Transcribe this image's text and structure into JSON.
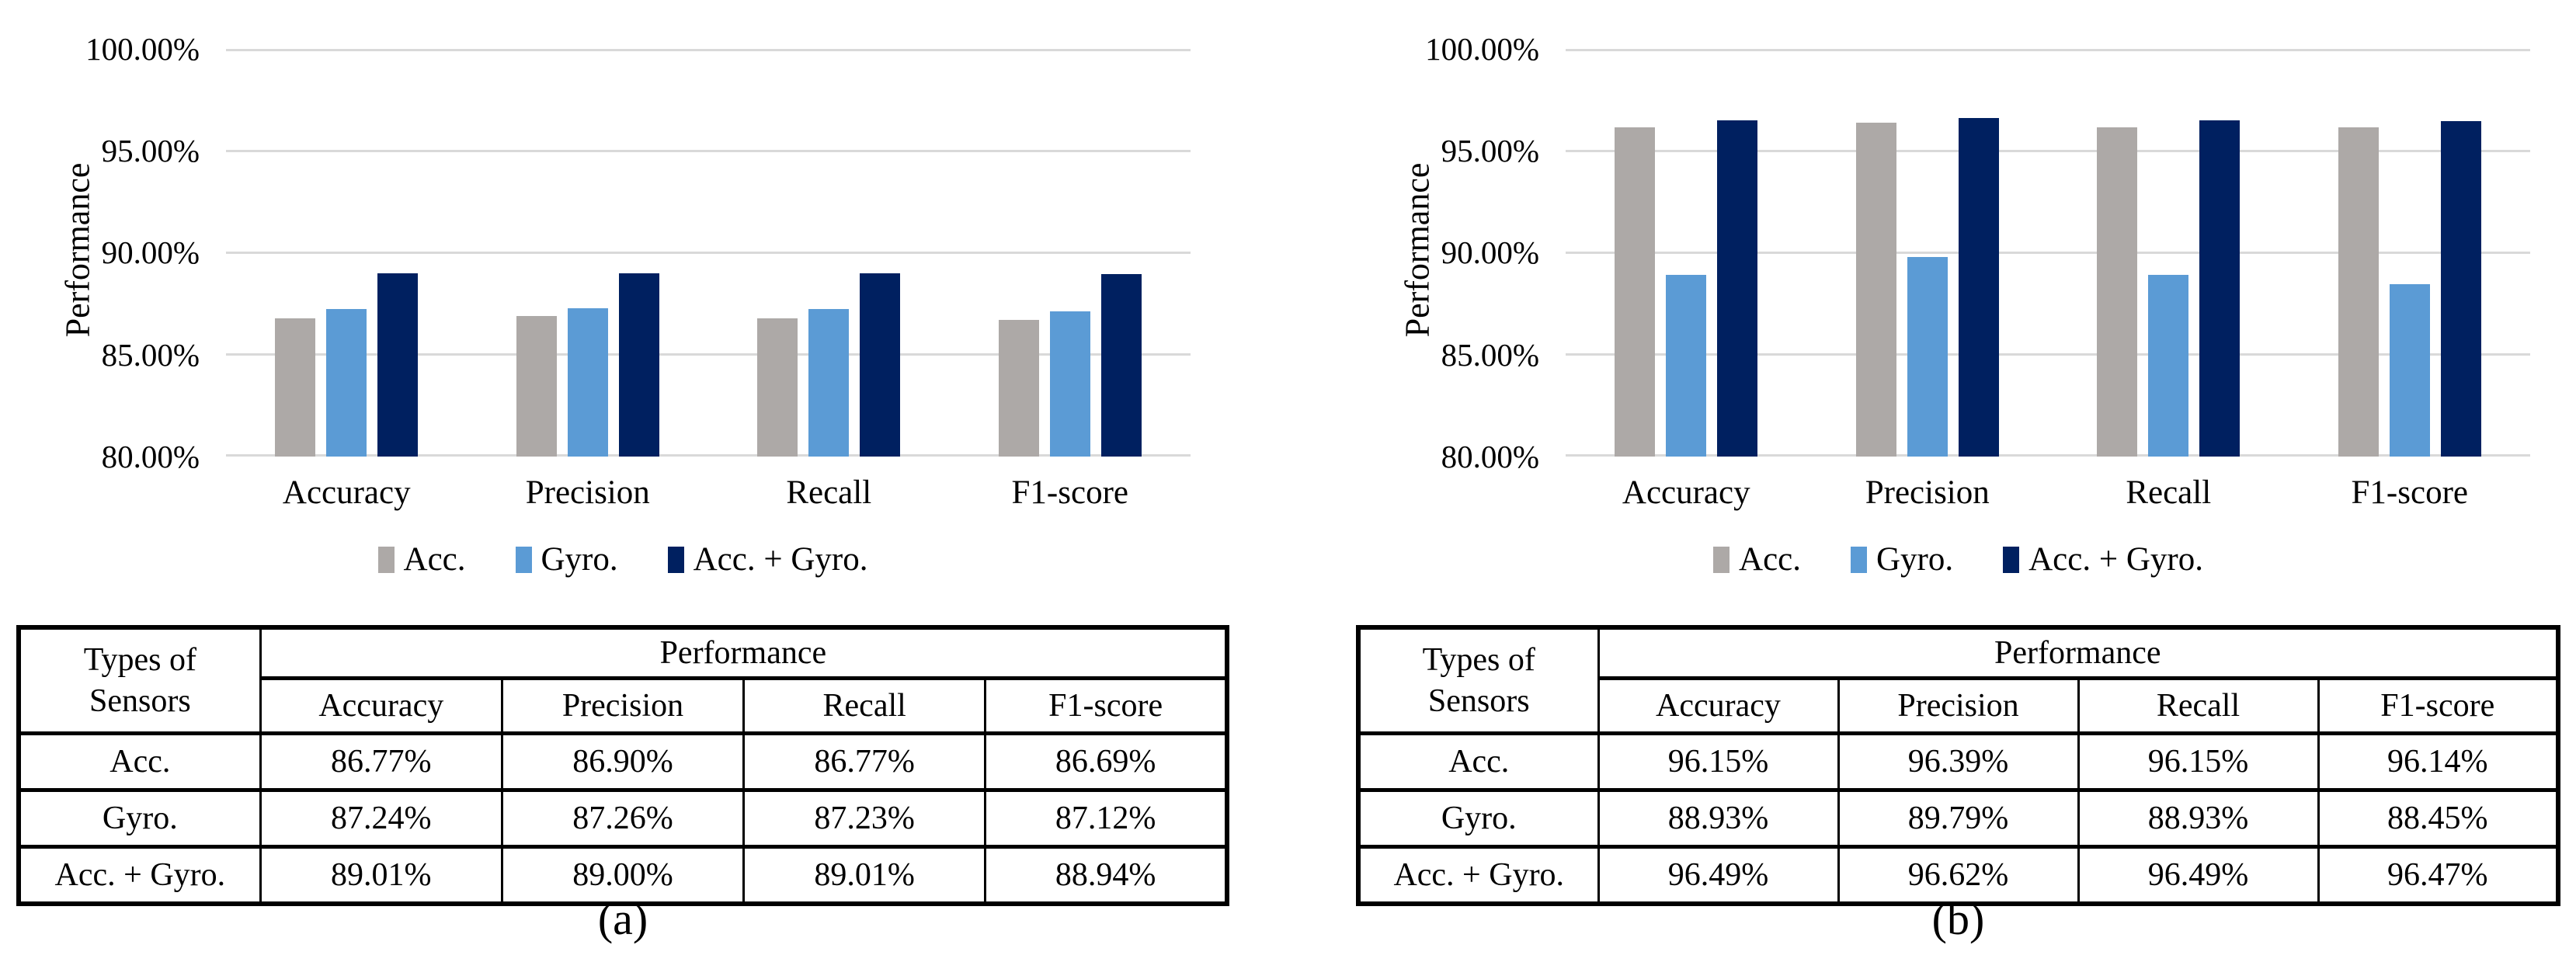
{
  "colors": {
    "acc": "#ada9a7",
    "gyro": "#5b9bd5",
    "acc_plus_gyro": "#002060",
    "gridline": "#d9d9d9"
  },
  "panels": [
    {
      "caption": "(a)",
      "chart_data": {
        "type": "bar",
        "title": "",
        "xlabel": "",
        "ylabel": "Performance",
        "ylim": [
          80,
          100
        ],
        "yticks": [
          "100.00%",
          "95.00%",
          "90.00%",
          "85.00%",
          "80.00%"
        ],
        "grid": true,
        "legend_position": "bottom",
        "categories": [
          "Accuracy",
          "Precision",
          "Recall",
          "F1-score"
        ],
        "series": [
          {
            "name": "Acc.",
            "values": [
              86.77,
              86.9,
              86.77,
              86.69
            ]
          },
          {
            "name": "Gyro.",
            "values": [
              87.24,
              87.26,
              87.23,
              87.12
            ]
          },
          {
            "name": "Acc. + Gyro.",
            "values": [
              89.01,
              89.0,
              89.01,
              88.94
            ]
          }
        ]
      },
      "table": {
        "corner_header": "Types of\nSensors",
        "group_header": "Performance",
        "col_headers": [
          "Accuracy",
          "Precision",
          "Recall",
          "F1-score"
        ],
        "rows": [
          {
            "label": "Acc.",
            "values": [
              "86.77%",
              "86.90%",
              "86.77%",
              "86.69%"
            ]
          },
          {
            "label": "Gyro.",
            "values": [
              "87.24%",
              "87.26%",
              "87.23%",
              "87.12%"
            ]
          },
          {
            "label": "Acc. + Gyro.",
            "values": [
              "89.01%",
              "89.00%",
              "89.01%",
              "88.94%"
            ]
          }
        ]
      }
    },
    {
      "caption": "(b)",
      "chart_data": {
        "type": "bar",
        "title": "",
        "xlabel": "",
        "ylabel": "Performance",
        "ylim": [
          80,
          100
        ],
        "yticks": [
          "100.00%",
          "95.00%",
          "90.00%",
          "85.00%",
          "80.00%"
        ],
        "grid": true,
        "legend_position": "bottom",
        "categories": [
          "Accuracy",
          "Precision",
          "Recall",
          "F1-score"
        ],
        "series": [
          {
            "name": "Acc.",
            "values": [
              96.15,
              96.39,
              96.15,
              96.14
            ]
          },
          {
            "name": "Gyro.",
            "values": [
              88.93,
              89.79,
              88.93,
              88.45
            ]
          },
          {
            "name": "Acc. + Gyro.",
            "values": [
              96.49,
              96.62,
              96.49,
              96.47
            ]
          }
        ]
      },
      "table": {
        "corner_header": "Types of\nSensors",
        "group_header": "Performance",
        "col_headers": [
          "Accuracy",
          "Precision",
          "Recall",
          "F1-score"
        ],
        "rows": [
          {
            "label": "Acc.",
            "values": [
              "96.15%",
              "96.39%",
              "96.15%",
              "96.14%"
            ]
          },
          {
            "label": "Gyro.",
            "values": [
              "88.93%",
              "89.79%",
              "88.93%",
              "88.45%"
            ]
          },
          {
            "label": "Acc. + Gyro.",
            "values": [
              "96.49%",
              "96.62%",
              "96.49%",
              "96.47%"
            ]
          }
        ]
      }
    }
  ]
}
